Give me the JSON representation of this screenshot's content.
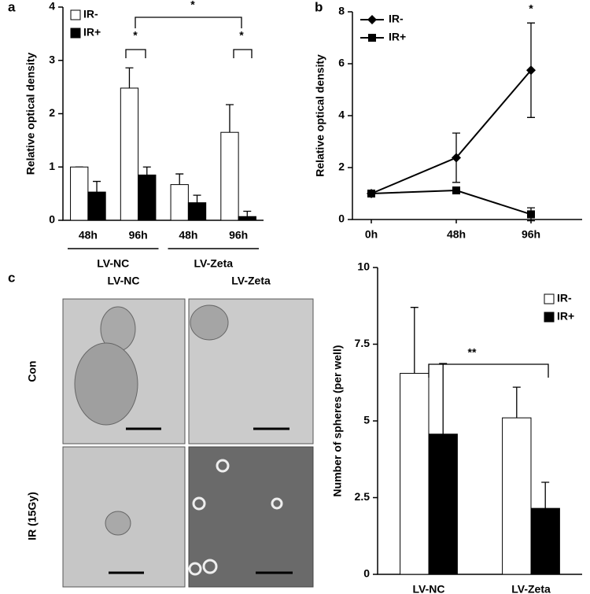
{
  "chart_data": [
    {
      "type": "bar",
      "panel": "a",
      "ylabel": "Relative optical density",
      "categories": [
        "48h",
        "96h",
        "48h",
        "96h"
      ],
      "groups": [
        "LV-NC",
        "LV-Zeta"
      ],
      "series": [
        {
          "name": "IR-",
          "color": "#ffffff",
          "values": [
            1,
            2.48,
            0.67,
            1.65
          ],
          "errors": [
            0,
            0.38,
            0.2,
            0.52
          ]
        },
        {
          "name": "IR+",
          "color": "#000000",
          "values": [
            0.53,
            0.85,
            0.33,
            0.07
          ],
          "errors": [
            0.2,
            0.15,
            0.14,
            0.1
          ]
        }
      ],
      "ylim": [
        0,
        4
      ],
      "yticks": [
        0,
        1,
        2,
        3,
        4
      ],
      "legend": "top-left",
      "annotations": [
        "*",
        "*",
        "*"
      ]
    },
    {
      "type": "line",
      "panel": "b",
      "ylabel": "Relative optical density",
      "categories": [
        "0h",
        "48h",
        "96h"
      ],
      "series": [
        {
          "name": "IR-",
          "color": "#000000",
          "marker": "diamond",
          "values": [
            1,
            2.38,
            5.75
          ],
          "errors": [
            0,
            0.95,
            1.82
          ]
        },
        {
          "name": "IR+",
          "color": "#000000",
          "marker": "square",
          "values": [
            1,
            1.12,
            0.2
          ],
          "errors": [
            0,
            0,
            0.25
          ]
        }
      ],
      "ylim": [
        0,
        8
      ],
      "yticks": [
        0,
        2,
        4,
        6,
        8
      ],
      "legend": "top-left",
      "annotations": [
        "*"
      ]
    },
    {
      "type": "bar",
      "ylabel": "Number of spheres (per well)",
      "categories": [
        "LV-NC",
        "LV-Zeta"
      ],
      "series": [
        {
          "name": "IR-",
          "color": "#ffffff",
          "values": [
            6.55,
            5.1
          ],
          "errors": [
            2.15,
            1.0
          ]
        },
        {
          "name": "IR+",
          "color": "#000000",
          "values": [
            4.57,
            2.15
          ],
          "errors": [
            2.3,
            0.85
          ]
        }
      ],
      "ylim": [
        0,
        10
      ],
      "yticks": [
        0,
        2.5,
        5,
        7.5,
        10
      ],
      "legend": "top-right",
      "annotations": [
        "**"
      ]
    }
  ],
  "micrographs": {
    "panel": "c",
    "columns": [
      "LV-NC",
      "LV-Zeta"
    ],
    "rows": [
      "Con",
      "IR (15Gy)"
    ]
  }
}
